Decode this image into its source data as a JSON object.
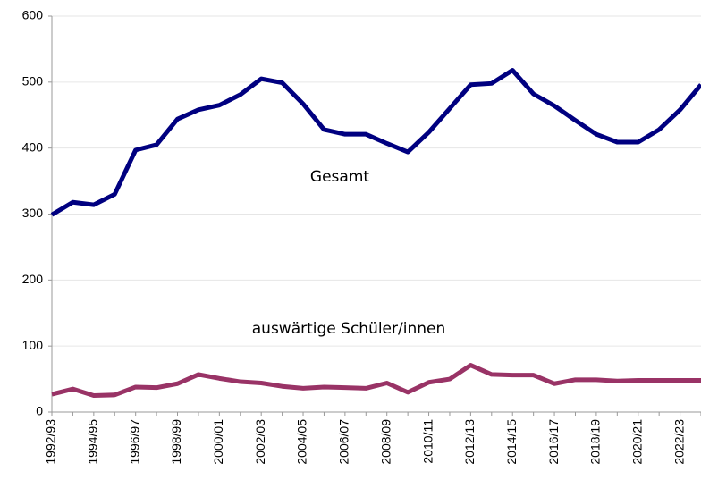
{
  "chart_data": {
    "type": "line",
    "categories": [
      "1992/93",
      null,
      "1994/95",
      null,
      "1996/97",
      null,
      "1998/99",
      null,
      "2000/01",
      null,
      "2002/03",
      null,
      "2004/05",
      null,
      "2006/07",
      null,
      "2008/09",
      null,
      "2010/11",
      null,
      "2012/13",
      null,
      "2014/15",
      null,
      "2016/17",
      null,
      "2018/19",
      null,
      "2020/21",
      null,
      "2022/23",
      null
    ],
    "series": [
      {
        "name": "Gesamt",
        "color": "#000080",
        "values": [
          299,
          318,
          314,
          330,
          397,
          405,
          444,
          458,
          465,
          481,
          505,
          499,
          467,
          428,
          421,
          421,
          407,
          394,
          424,
          460,
          496,
          498,
          518,
          482,
          464,
          442,
          421,
          409,
          409,
          428,
          458,
          496
        ]
      },
      {
        "name": "auswärtige Schüler/innen",
        "color": "#993366",
        "values": [
          27,
          35,
          25,
          26,
          38,
          37,
          43,
          57,
          51,
          46,
          44,
          39,
          36,
          38,
          37,
          36,
          44,
          30,
          45,
          50,
          71,
          57,
          56,
          56,
          43,
          49,
          49,
          47,
          48,
          48,
          48,
          48
        ]
      }
    ],
    "ylim": [
      0,
      600
    ],
    "yticks": [
      0,
      100,
      200,
      300,
      400,
      500,
      600
    ],
    "grid": true
  }
}
